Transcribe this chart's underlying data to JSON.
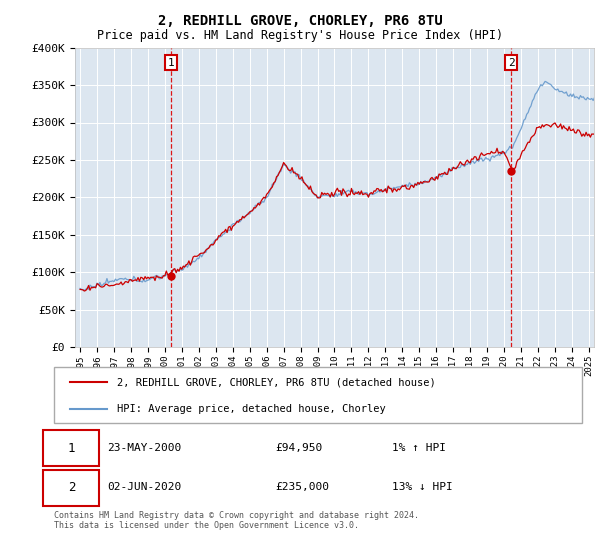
{
  "title": "2, REDHILL GROVE, CHORLEY, PR6 8TU",
  "subtitle": "Price paid vs. HM Land Registry's House Price Index (HPI)",
  "background_color": "#dce6f0",
  "plot_bg_color": "#dce6f0",
  "ylim": [
    0,
    400000
  ],
  "yticks": [
    0,
    50000,
    100000,
    150000,
    200000,
    250000,
    300000,
    350000,
    400000
  ],
  "ytick_labels": [
    "£0",
    "£50K",
    "£100K",
    "£150K",
    "£200K",
    "£250K",
    "£300K",
    "£350K",
    "£400K"
  ],
  "year_start": 1995,
  "year_end": 2025,
  "t1_year": 2000.375,
  "t2_year": 2020.416,
  "p1": 94950,
  "p2": 235000,
  "transaction1": {
    "date": "2000-05-23",
    "price": 94950,
    "label": "1",
    "hpi_pct": "1% ↑ HPI"
  },
  "transaction2": {
    "date": "2020-06-02",
    "price": 235000,
    "label": "2",
    "hpi_pct": "13% ↓ HPI"
  },
  "legend_entry1": "2, REDHILL GROVE, CHORLEY, PR6 8TU (detached house)",
  "legend_entry2": "HPI: Average price, detached house, Chorley",
  "annotation1_date": "23-MAY-2000",
  "annotation1_price": "£94,950",
  "annotation2_date": "02-JUN-2020",
  "annotation2_price": "£235,000",
  "footer": "Contains HM Land Registry data © Crown copyright and database right 2024.\nThis data is licensed under the Open Government Licence v3.0.",
  "red_line_color": "#cc0000",
  "blue_line_color": "#6699cc",
  "marker_color": "#cc0000",
  "vline_color": "#dd0000",
  "label_box_color": "#cc0000",
  "grid_color": "#ffffff",
  "spine_color": "#bbbbbb"
}
